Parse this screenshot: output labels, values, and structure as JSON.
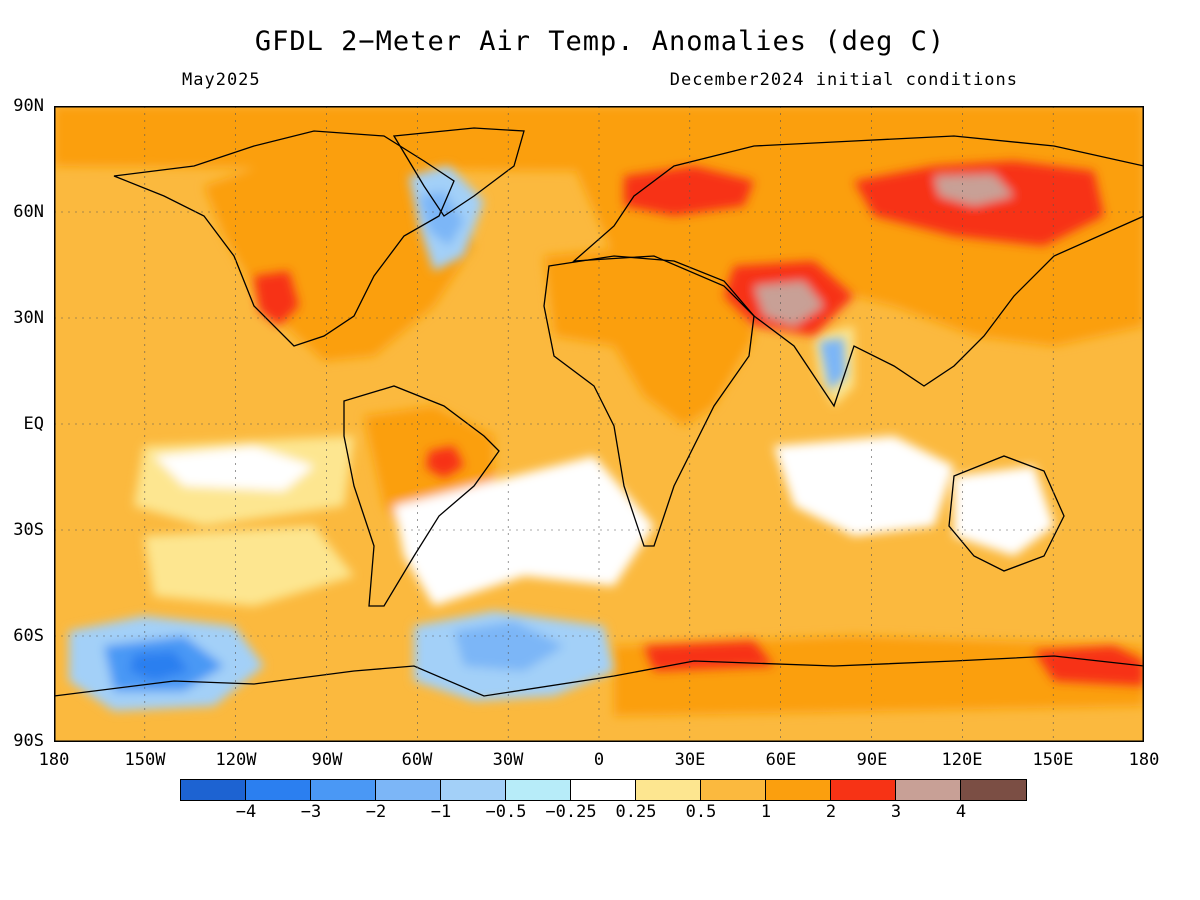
{
  "title": "GFDL 2−Meter Air Temp. Anomalies (deg C)",
  "subtitle_left": "May2025",
  "subtitle_right": "December2024 initial conditions",
  "lat_labels": [
    "90N",
    "60N",
    "30N",
    "EQ",
    "30S",
    "60S",
    "90S"
  ],
  "lon_labels": [
    "180",
    "150W",
    "120W",
    "90W",
    "60W",
    "30W",
    "0",
    "30E",
    "60E",
    "90E",
    "120E",
    "150E",
    "180"
  ],
  "colorbar": {
    "colors": [
      "#1d63d2",
      "#2b7ff0",
      "#4a98f5",
      "#7cb6f7",
      "#a3d0f8",
      "#b7ecf9",
      "#ffffff",
      "#fde690",
      "#fbb93e",
      "#fb9f0e",
      "#f73315",
      "#c8a096",
      "#7b4e44"
    ],
    "labels": [
      "−4",
      "−3",
      "−2",
      "−1",
      "−0.5",
      "−0.25",
      "0.25",
      "0.5",
      "1",
      "2",
      "3",
      "4"
    ]
  }
}
